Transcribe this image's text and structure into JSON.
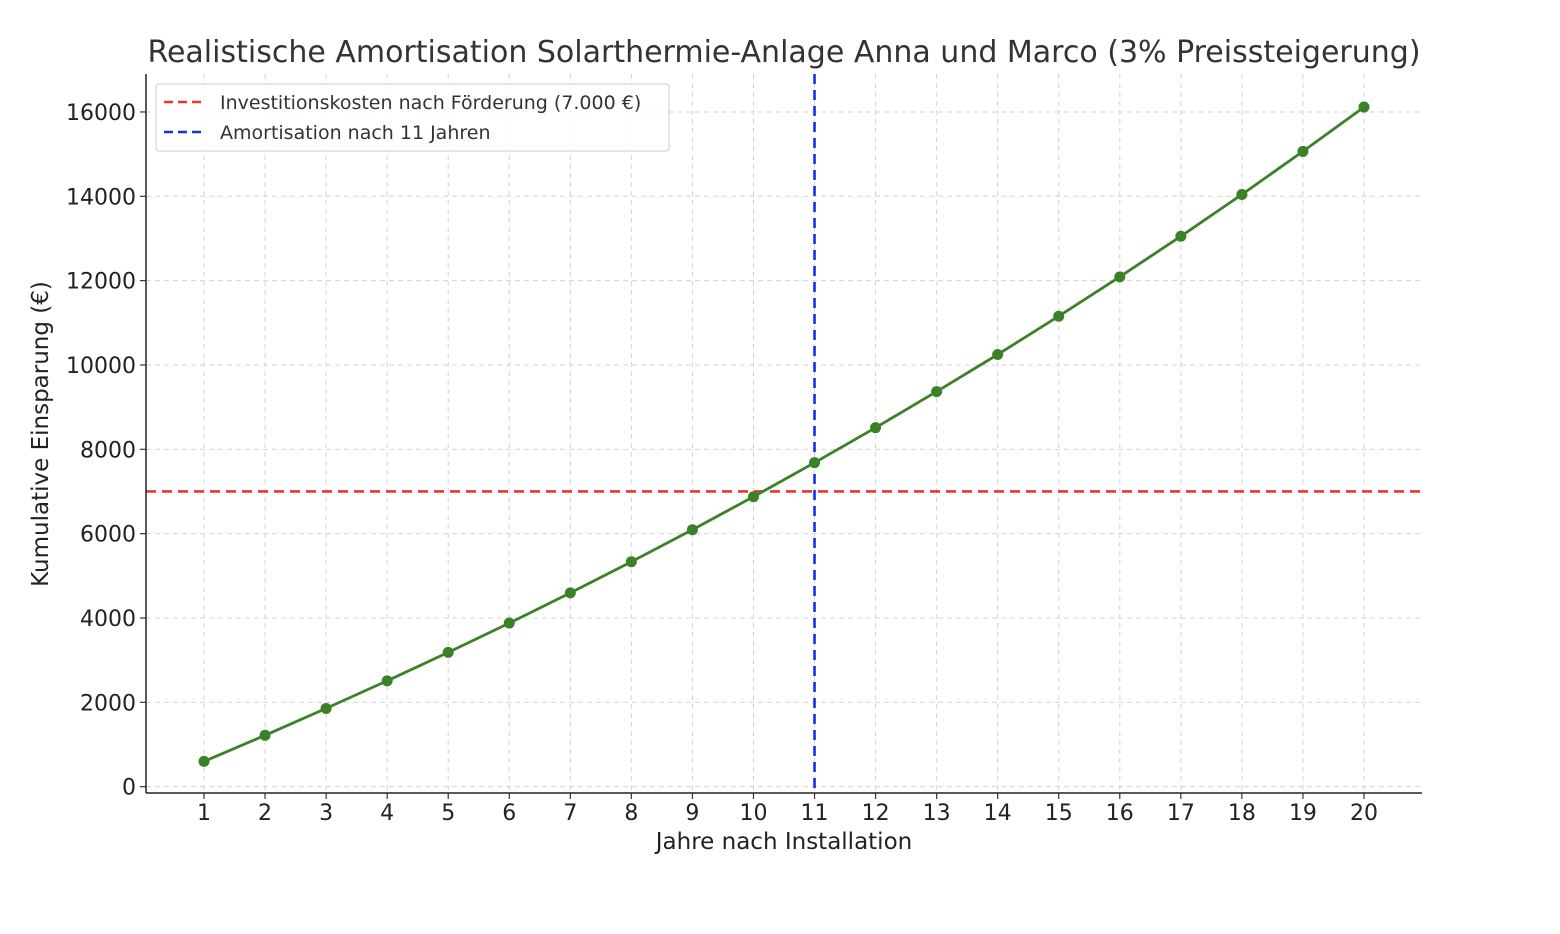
{
  "chart_data": {
    "type": "line",
    "title": "Realistische Amortisation Solarthermie-Anlage Anna und Marco (3% Preissteigerung)",
    "xlabel": "Jahre nach Installation",
    "ylabel": "Kumulative Einsparung (€)",
    "x": [
      1,
      2,
      3,
      4,
      5,
      6,
      7,
      8,
      9,
      10,
      11,
      12,
      13,
      14,
      15,
      16,
      17,
      18,
      19,
      20
    ],
    "series": [
      {
        "values": [
          600,
          1218,
          1855,
          2510,
          3185,
          3880,
          4596,
          5334,
          6094,
          6876,
          7683,
          8513,
          9368,
          10249,
          11156,
          12090,
          13052,
          14043,
          15064,
          16116
        ],
        "color": "#3b8128",
        "marker": "circle"
      }
    ],
    "xlim": [
      0.05,
      20.95
    ],
    "ylim": [
      -150,
      16900
    ],
    "xticks": [
      "1",
      "2",
      "3",
      "4",
      "5",
      "6",
      "7",
      "8",
      "9",
      "10",
      "11",
      "12",
      "13",
      "14",
      "15",
      "16",
      "17",
      "18",
      "19",
      "20"
    ],
    "yticks": [
      "0",
      "2000",
      "4000",
      "6000",
      "8000",
      "10000",
      "12000",
      "14000",
      "16000"
    ],
    "grid": true,
    "reference_lines": [
      {
        "orientation": "horizontal",
        "value": 7000,
        "color": "#e8372c",
        "style": "dashed",
        "label": "Investitionskosten nach Förderung (7.000 €)"
      },
      {
        "orientation": "vertical",
        "value": 11,
        "color": "#1a2ee8",
        "style": "dashed",
        "label": "Amortisation nach 11 Jahren"
      }
    ],
    "legend_position": "top-left"
  }
}
